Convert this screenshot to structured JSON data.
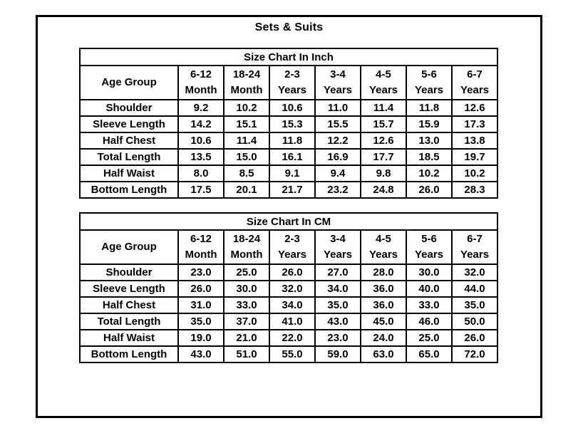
{
  "page": {
    "title": "Sets & Suits"
  },
  "colors": {
    "background": "#ffffff",
    "text": "#000000",
    "border": "#000000"
  },
  "tables": [
    {
      "title": "Size Chart In Inch",
      "corner_label": "Age Group",
      "columns": [
        {
          "range": "6-12",
          "unit": "Month"
        },
        {
          "range": "18-24",
          "unit": "Month"
        },
        {
          "range": "2-3",
          "unit": "Years"
        },
        {
          "range": "3-4",
          "unit": "Years"
        },
        {
          "range": "4-5",
          "unit": "Years"
        },
        {
          "range": "5-6",
          "unit": "Years"
        },
        {
          "range": "6-7",
          "unit": "Years"
        }
      ],
      "rows": [
        {
          "label": "Shoulder",
          "values": [
            "9.2",
            "10.2",
            "10.6",
            "11.0",
            "11.4",
            "11.8",
            "12.6"
          ]
        },
        {
          "label": "Sleeve Length",
          "values": [
            "14.2",
            "15.1",
            "15.3",
            "15.5",
            "15.7",
            "15.9",
            "17.3"
          ]
        },
        {
          "label": "Half Chest",
          "values": [
            "10.6",
            "11.4",
            "11.8",
            "12.2",
            "12.6",
            "13.0",
            "13.8"
          ]
        },
        {
          "label": "Total Length",
          "values": [
            "13.5",
            "15.0",
            "16.1",
            "16.9",
            "17.7",
            "18.5",
            "19.7"
          ]
        },
        {
          "label": "Half Waist",
          "values": [
            "8.0",
            "8.5",
            "9.1",
            "9.4",
            "9.8",
            "10.2",
            "10.2"
          ]
        },
        {
          "label": "Bottom Length",
          "values": [
            "17.5",
            "20.1",
            "21.7",
            "23.2",
            "24.8",
            "26.0",
            "28.3"
          ]
        }
      ]
    },
    {
      "title": "Size Chart In CM",
      "corner_label": "Age Group",
      "columns": [
        {
          "range": "6-12",
          "unit": "Month"
        },
        {
          "range": "18-24",
          "unit": "Month"
        },
        {
          "range": "2-3",
          "unit": "Years"
        },
        {
          "range": "3-4",
          "unit": "Years"
        },
        {
          "range": "4-5",
          "unit": "Years"
        },
        {
          "range": "5-6",
          "unit": "Years"
        },
        {
          "range": "6-7",
          "unit": "Years"
        }
      ],
      "rows": [
        {
          "label": "Shoulder",
          "values": [
            "23.0",
            "25.0",
            "26.0",
            "27.0",
            "28.0",
            "30.0",
            "32.0"
          ]
        },
        {
          "label": "Sleeve Length",
          "values": [
            "26.0",
            "30.0",
            "32.0",
            "34.0",
            "36.0",
            "40.0",
            "44.0"
          ]
        },
        {
          "label": "Half Chest",
          "values": [
            "31.0",
            "33.0",
            "34.0",
            "35.0",
            "36.0",
            "33.0",
            "35.0"
          ]
        },
        {
          "label": "Total Length",
          "values": [
            "35.0",
            "37.0",
            "41.0",
            "43.0",
            "45.0",
            "46.0",
            "50.0"
          ]
        },
        {
          "label": "Half Waist",
          "values": [
            "19.0",
            "21.0",
            "22.0",
            "23.0",
            "24.0",
            "25.0",
            "26.0"
          ]
        },
        {
          "label": "Bottom Length",
          "values": [
            "43.0",
            "51.0",
            "55.0",
            "59.0",
            "63.0",
            "65.0",
            "72.0"
          ]
        }
      ]
    }
  ]
}
